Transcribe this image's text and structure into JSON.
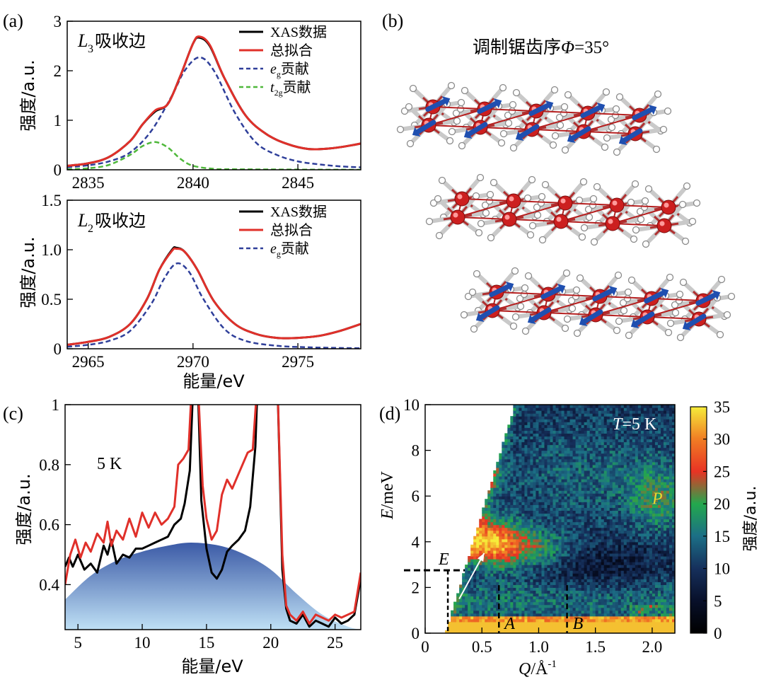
{
  "panel_labels": {
    "a": "(a)",
    "b": "(b)",
    "c": "(c)",
    "d": "(d)"
  },
  "panel_b": {
    "title_prefix": "调制锯齿序",
    "title_phi": "Φ",
    "title_suffix": "=35°"
  },
  "colors": {
    "xas": "#000000",
    "fit": "#e0302a",
    "eg": "#2f3f9a",
    "t2g": "#4fb83b",
    "fill_top": "#3b5aa6",
    "fill_bottom": "#bfe0f5",
    "atom": "#cc1f1f",
    "spin": "#1f4fb0"
  },
  "chart_data": [
    {
      "id": "a_top",
      "type": "line",
      "title": "L3吸收边",
      "title_L": "L",
      "title_sub": "3",
      "title_rest": "吸收边",
      "xlabel": "",
      "ylabel": "强度/a.u.",
      "xlim": [
        2834,
        2848
      ],
      "ylim": [
        0,
        3
      ],
      "xticks": [
        2835,
        2840,
        2845
      ],
      "yticks": [
        0,
        1,
        2,
        3
      ],
      "legend": [
        {
          "label": "XAS数据",
          "italic": "",
          "sub": "",
          "series": "xas"
        },
        {
          "label": "总拟合",
          "italic": "",
          "sub": "",
          "series": "fit"
        },
        {
          "label": "贡献",
          "italic": "e",
          "sub": "g",
          "series": "eg"
        },
        {
          "label": "贡献",
          "italic": "t",
          "sub": "2g",
          "series": "t2g"
        }
      ],
      "series": [
        {
          "name": "xas",
          "x": [
            2834,
            2835,
            2836,
            2837,
            2837.6,
            2838.2,
            2838.8,
            2839.4,
            2840,
            2840.3,
            2840.8,
            2841.5,
            2842.5,
            2843.5,
            2844.5,
            2845.5,
            2846.5,
            2847.5,
            2848
          ],
          "y": [
            0.08,
            0.13,
            0.26,
            0.58,
            0.92,
            1.18,
            1.33,
            1.9,
            2.55,
            2.67,
            2.5,
            1.85,
            1.1,
            0.72,
            0.52,
            0.42,
            0.43,
            0.49,
            0.53
          ]
        },
        {
          "name": "fit",
          "x": [
            2834,
            2835,
            2836,
            2837,
            2837.6,
            2838.2,
            2838.8,
            2839.4,
            2840,
            2840.3,
            2840.8,
            2841.5,
            2842.5,
            2843.5,
            2844.5,
            2845.5,
            2846.5,
            2847.5,
            2848
          ],
          "y": [
            0.08,
            0.13,
            0.26,
            0.58,
            0.92,
            1.2,
            1.33,
            1.9,
            2.55,
            2.69,
            2.52,
            1.85,
            1.1,
            0.72,
            0.52,
            0.42,
            0.43,
            0.49,
            0.53
          ]
        },
        {
          "name": "eg",
          "x": [
            2834,
            2835,
            2836,
            2837,
            2838,
            2839,
            2839.6,
            2840.3,
            2841,
            2842,
            2843,
            2844,
            2845,
            2846,
            2847,
            2848
          ],
          "y": [
            0.05,
            0.09,
            0.17,
            0.35,
            0.78,
            1.5,
            2.0,
            2.27,
            2.0,
            1.15,
            0.55,
            0.3,
            0.17,
            0.11,
            0.07,
            0.05
          ]
        },
        {
          "name": "t2g",
          "x": [
            2834,
            2835,
            2836,
            2837,
            2837.6,
            2838.2,
            2838.8,
            2839.4,
            2840,
            2841,
            2842,
            2848
          ],
          "y": [
            0.01,
            0.03,
            0.1,
            0.3,
            0.48,
            0.56,
            0.45,
            0.22,
            0.08,
            0.02,
            0.01,
            0.0
          ]
        }
      ]
    },
    {
      "id": "a_bottom",
      "type": "line",
      "title": "L2吸收边",
      "title_L": "L",
      "title_sub": "2",
      "title_rest": "吸收边",
      "xlabel": "能量/eV",
      "ylabel": "强度/a.u.",
      "xlim": [
        2964,
        2978
      ],
      "ylim": [
        0,
        1.5
      ],
      "xticks": [
        2965,
        2970,
        2975
      ],
      "yticks": [
        0,
        0.5,
        1.0,
        1.5
      ],
      "ytick_labels": [
        "0",
        "0.5",
        "1.0",
        "1.5"
      ],
      "legend": [
        {
          "label": "XAS数据",
          "italic": "",
          "sub": "",
          "series": "xas"
        },
        {
          "label": "总拟合",
          "italic": "",
          "sub": "",
          "series": "fit"
        },
        {
          "label": "贡献",
          "italic": "e",
          "sub": "g",
          "series": "eg"
        }
      ],
      "series": [
        {
          "name": "xas",
          "x": [
            2964,
            2965,
            2966,
            2967,
            2967.8,
            2968.4,
            2969,
            2969.2,
            2969.6,
            2970.2,
            2971,
            2972,
            2973,
            2974,
            2975,
            2976,
            2977,
            2978
          ],
          "y": [
            0.04,
            0.07,
            0.12,
            0.25,
            0.5,
            0.8,
            1.0,
            1.02,
            0.98,
            0.8,
            0.48,
            0.25,
            0.15,
            0.11,
            0.11,
            0.13,
            0.18,
            0.25
          ]
        },
        {
          "name": "fit",
          "x": [
            2964,
            2965,
            2966,
            2967,
            2967.8,
            2968.4,
            2969,
            2969.2,
            2969.6,
            2970.2,
            2971,
            2972,
            2973,
            2974,
            2975,
            2976,
            2977,
            2978
          ],
          "y": [
            0.04,
            0.07,
            0.12,
            0.25,
            0.5,
            0.8,
            0.99,
            1.01,
            0.98,
            0.8,
            0.48,
            0.25,
            0.15,
            0.11,
            0.11,
            0.13,
            0.18,
            0.25
          ]
        },
        {
          "name": "eg",
          "x": [
            2964,
            2965,
            2966,
            2967,
            2968,
            2968.6,
            2969.2,
            2969.8,
            2970.5,
            2971.5,
            2972.5,
            2974,
            2975.5,
            2977,
            2978
          ],
          "y": [
            0.02,
            0.04,
            0.08,
            0.18,
            0.45,
            0.7,
            0.86,
            0.78,
            0.5,
            0.2,
            0.08,
            0.03,
            0.015,
            0.008,
            0.005
          ]
        }
      ]
    },
    {
      "id": "c",
      "type": "line",
      "annotation": "5 K",
      "xlabel": "能量/eV",
      "ylabel": "强度/a.u.",
      "xlim": [
        4,
        27
      ],
      "ylim": [
        0.25,
        1.0
      ],
      "xticks": [
        5,
        10,
        15,
        20,
        25
      ],
      "yticks": [
        0.4,
        0.6,
        0.8,
        1
      ],
      "ytick_labels": [
        "0.4",
        "0.6",
        "0.8",
        "1"
      ],
      "background": {
        "x": [
          4,
          6,
          8,
          10,
          12,
          13.8,
          16,
          18,
          20,
          22,
          24,
          26,
          27
        ],
        "y": [
          0.35,
          0.43,
          0.48,
          0.51,
          0.53,
          0.54,
          0.53,
          0.5,
          0.45,
          0.37,
          0.3,
          0.26,
          0.25
        ]
      },
      "series": [
        {
          "name": "black",
          "x": [
            4,
            4.3,
            4.6,
            5,
            5.5,
            6,
            6.5,
            7,
            7.3,
            7.6,
            8,
            8.5,
            9,
            9.5,
            10,
            10.5,
            11,
            11.5,
            12,
            12.5,
            13,
            13.3,
            13.7,
            14,
            14.3,
            14.6,
            15,
            15.4,
            15.8,
            16.2,
            16.6,
            17,
            17.5,
            18,
            18.4,
            18.8,
            19,
            20.5,
            20.9,
            21.2,
            21.5,
            22,
            22.5,
            23,
            23.5,
            24,
            24.5,
            25,
            25.5,
            26,
            26.5,
            27
          ],
          "y": [
            0.46,
            0.49,
            0.46,
            0.5,
            0.45,
            0.47,
            0.44,
            0.53,
            0.5,
            0.55,
            0.47,
            0.5,
            0.49,
            0.52,
            0.52,
            0.53,
            0.54,
            0.55,
            0.56,
            0.6,
            0.62,
            0.67,
            0.78,
            1.1,
            1.1,
            0.68,
            0.52,
            0.44,
            0.42,
            0.45,
            0.51,
            0.53,
            0.55,
            0.58,
            0.66,
            0.86,
            1.1,
            1.1,
            0.45,
            0.32,
            0.28,
            0.27,
            0.3,
            0.26,
            0.28,
            0.27,
            0.26,
            0.29,
            0.27,
            0.28,
            0.3,
            0.42
          ]
        },
        {
          "name": "red",
          "x": [
            4,
            4.4,
            4.8,
            5.2,
            5.6,
            6,
            6.5,
            7,
            7.3,
            7.6,
            8,
            8.5,
            9,
            9.5,
            10,
            10.5,
            11,
            11.5,
            12,
            12.5,
            12.8,
            13.2,
            13.6,
            13.9,
            14.3,
            14.7,
            15,
            15.4,
            15.8,
            16.2,
            16.6,
            17,
            17.4,
            17.8,
            18.2,
            18.6,
            19,
            20.5,
            20.9,
            21.2,
            21.5,
            22,
            22.5,
            23,
            23.5,
            24,
            24.5,
            25,
            25.5,
            26,
            26.5,
            27
          ],
          "y": [
            0.4,
            0.5,
            0.55,
            0.49,
            0.54,
            0.51,
            0.57,
            0.54,
            0.61,
            0.53,
            0.58,
            0.55,
            0.62,
            0.56,
            0.64,
            0.59,
            0.64,
            0.6,
            0.62,
            0.66,
            0.8,
            0.82,
            0.85,
            1.1,
            1.1,
            0.73,
            0.62,
            0.55,
            0.58,
            0.7,
            0.75,
            0.72,
            0.76,
            0.8,
            0.84,
            0.85,
            1.1,
            1.1,
            0.5,
            0.33,
            0.3,
            0.28,
            0.31,
            0.27,
            0.3,
            0.29,
            0.28,
            0.3,
            0.29,
            0.3,
            0.31,
            0.44
          ]
        }
      ]
    },
    {
      "id": "d",
      "type": "heatmap",
      "annotation_T": "T",
      "annotation_rest": "=5 K",
      "xlabel": "Q/Å⁻¹",
      "xlabel_italic": "Q",
      "xlabel_rest": "/Å",
      "xlabel_sup": "-1",
      "ylabel": "E/meV",
      "ylabel_italic": "E",
      "ylabel_rest": "/meV",
      "xlim": [
        0,
        2.2
      ],
      "ylim": [
        0,
        10
      ],
      "xticks": [
        0,
        0.5,
        1.0,
        1.5,
        2.0
      ],
      "yticks": [
        0,
        2,
        4,
        6,
        8,
        10
      ],
      "xtick_labels": [
        "0",
        "0.5",
        "1.0",
        "1.5",
        "2.0"
      ],
      "labels": {
        "E": "E",
        "A": "A",
        "B": "B",
        "P": "P"
      },
      "markers": {
        "E_level": 2.75,
        "A_q": 0.65,
        "B_q": 1.25,
        "P_q": 2.05,
        "P_e": 5.9
      },
      "colorbar": {
        "label": "强度/a.u.",
        "min": 0,
        "max": 35,
        "ticks": [
          0,
          5,
          10,
          15,
          20,
          25,
          30,
          35
        ],
        "stops": [
          [
            0,
            "#000000"
          ],
          [
            5,
            "#08102a"
          ],
          [
            10,
            "#16305c"
          ],
          [
            15,
            "#1c6f86"
          ],
          [
            20,
            "#23a84d"
          ],
          [
            25,
            "#e83324"
          ],
          [
            30,
            "#f07d24"
          ],
          [
            35,
            "#f6ec3a"
          ]
        ]
      }
    }
  ]
}
